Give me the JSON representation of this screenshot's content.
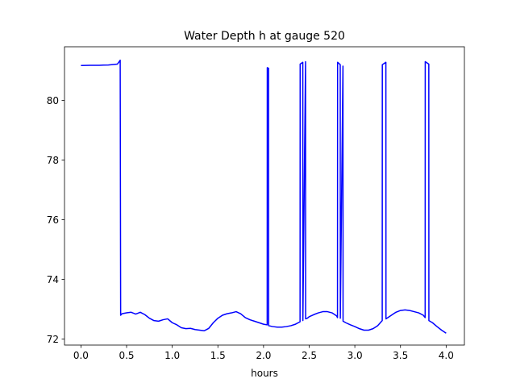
{
  "chart_data": {
    "type": "line",
    "title": "Water Depth h at gauge 520",
    "xlabel": "hours",
    "ylabel": "",
    "xlim": [
      -0.18,
      4.2
    ],
    "ylim": [
      71.8,
      81.8
    ],
    "xticks": [
      0.0,
      0.5,
      1.0,
      1.5,
      2.0,
      2.5,
      3.0,
      3.5,
      4.0
    ],
    "xtick_labels": [
      "0.0",
      "0.5",
      "1.0",
      "1.5",
      "2.0",
      "2.5",
      "3.0",
      "3.5",
      "4.0"
    ],
    "yticks": [
      72,
      74,
      76,
      78,
      80
    ],
    "ytick_labels": [
      "72",
      "74",
      "76",
      "78",
      "80"
    ],
    "grid": false,
    "series": [
      {
        "color": "#0000ff",
        "x": [
          0.0,
          0.1,
          0.2,
          0.3,
          0.4,
          0.43,
          0.435,
          0.45,
          0.5,
          0.55,
          0.6,
          0.65,
          0.7,
          0.75,
          0.8,
          0.85,
          0.9,
          0.95,
          1.0,
          1.05,
          1.1,
          1.15,
          1.2,
          1.25,
          1.3,
          1.35,
          1.4,
          1.45,
          1.5,
          1.55,
          1.6,
          1.65,
          1.7,
          1.75,
          1.8,
          1.85,
          1.9,
          1.95,
          2.0,
          2.04,
          2.041,
          2.055,
          2.056,
          2.1,
          2.15,
          2.2,
          2.25,
          2.3,
          2.35,
          2.4,
          2.401,
          2.43,
          2.431,
          2.46,
          2.461,
          2.48,
          2.5,
          2.55,
          2.6,
          2.65,
          2.7,
          2.75,
          2.8,
          2.81,
          2.811,
          2.84,
          2.841,
          2.87,
          2.871,
          2.9,
          2.95,
          3.0,
          3.05,
          3.1,
          3.15,
          3.2,
          3.25,
          3.3,
          3.301,
          3.34,
          3.341,
          3.4,
          3.45,
          3.5,
          3.55,
          3.6,
          3.65,
          3.7,
          3.75,
          3.77,
          3.771,
          3.81,
          3.811,
          3.85,
          3.9,
          3.95,
          4.0
        ],
        "y": [
          81.17,
          81.18,
          81.18,
          81.19,
          81.22,
          81.35,
          72.8,
          72.85,
          72.88,
          72.9,
          72.84,
          72.9,
          72.82,
          72.7,
          72.62,
          72.6,
          72.65,
          72.68,
          72.55,
          72.48,
          72.38,
          72.35,
          72.36,
          72.32,
          72.3,
          72.28,
          72.36,
          72.55,
          72.7,
          72.8,
          72.85,
          72.88,
          72.92,
          72.85,
          72.72,
          72.65,
          72.6,
          72.55,
          72.5,
          72.48,
          81.1,
          81.08,
          72.45,
          72.42,
          72.4,
          72.4,
          72.42,
          72.45,
          72.5,
          72.58,
          81.22,
          81.28,
          72.62,
          81.3,
          72.68,
          72.7,
          72.75,
          72.82,
          72.88,
          72.92,
          72.92,
          72.88,
          72.78,
          72.72,
          81.28,
          81.2,
          72.7,
          81.15,
          72.6,
          72.55,
          72.48,
          72.42,
          72.35,
          72.3,
          72.3,
          72.35,
          72.45,
          72.62,
          81.2,
          81.28,
          72.68,
          72.8,
          72.9,
          72.96,
          72.98,
          72.96,
          72.92,
          72.88,
          72.8,
          72.72,
          81.3,
          81.22,
          72.62,
          72.55,
          72.42,
          72.3,
          72.2
        ]
      }
    ]
  }
}
